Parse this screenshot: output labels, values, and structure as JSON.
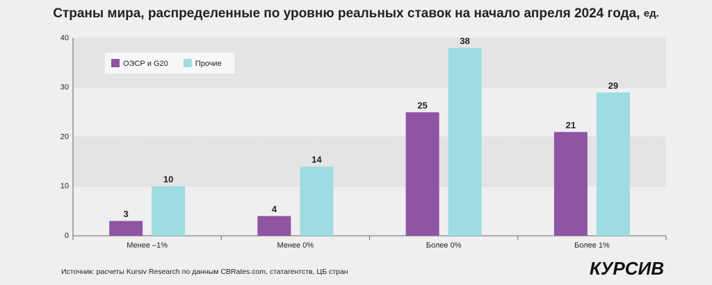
{
  "chart_data": {
    "type": "bar",
    "title": "Страны мира, распределенные по уровню реальных ставок на начало апреля 2024 года,",
    "title_unit": "ед.",
    "categories": [
      "Менее –1%",
      "Менее 0%",
      "Более 0%",
      "Более 1%"
    ],
    "series": [
      {
        "name": "ОЭСР и G20",
        "color": "#8e55a3",
        "values": [
          3,
          4,
          25,
          21
        ]
      },
      {
        "name": "Прочие",
        "color": "#9ddce0",
        "values": [
          10,
          14,
          38,
          29
        ]
      }
    ],
    "ylim": [
      0,
      40
    ],
    "yticks": [
      0,
      10,
      20,
      30,
      40
    ],
    "grid": true,
    "legend": "top-left",
    "source": "Источник: расчеты Kursiv Research по данным CBRates.com, статагентств, ЦБ стран",
    "brand": "КУРСИВ"
  }
}
